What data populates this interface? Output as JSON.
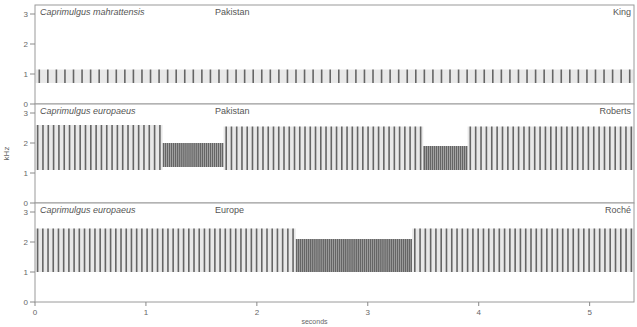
{
  "chart_data": [
    {
      "type": "spectrogram",
      "title": "Caprimulgus mahrattensis",
      "subtitle": "Pakistan",
      "annotations": [
        "King"
      ],
      "xlim": [
        0,
        5.4
      ],
      "ylim": [
        0,
        3.3
      ],
      "yticks": [
        0,
        1,
        2,
        3
      ],
      "segments": [
        {
          "start": 0,
          "end": 5.4,
          "low": 0.7,
          "high": 1.15,
          "pulses": 70
        }
      ]
    },
    {
      "type": "spectrogram",
      "title": "Caprimulgus europaeus",
      "subtitle": "Pakistan",
      "annotations": [
        "Roberts"
      ],
      "ylabel": "kHz",
      "xlim": [
        0,
        5.4
      ],
      "ylim": [
        0,
        3.3
      ],
      "yticks": [
        0,
        1,
        2,
        3
      ],
      "segments": [
        {
          "start": 0,
          "end": 1.15,
          "low": 1.1,
          "high": 2.6,
          "pulses": 24
        },
        {
          "start": 1.15,
          "end": 1.7,
          "low": 1.2,
          "high": 2.0,
          "pulses": 30
        },
        {
          "start": 1.7,
          "end": 3.5,
          "low": 1.1,
          "high": 2.55,
          "pulses": 38
        },
        {
          "start": 3.5,
          "end": 3.9,
          "low": 1.1,
          "high": 1.9,
          "pulses": 22
        },
        {
          "start": 3.9,
          "end": 5.4,
          "low": 1.1,
          "high": 2.55,
          "pulses": 31
        }
      ]
    },
    {
      "type": "spectrogram",
      "title": "Caprimulgus europaeus",
      "subtitle": "Europe",
      "annotations": [
        "Roché"
      ],
      "xlabel": "seconds",
      "xlim": [
        0,
        5.4
      ],
      "xticks": [
        0,
        1,
        2,
        3,
        4,
        5
      ],
      "ylim": [
        0,
        3.3
      ],
      "yticks": [
        0,
        1,
        2,
        3
      ],
      "segments": [
        {
          "start": 0,
          "end": 2.35,
          "low": 1.0,
          "high": 2.45,
          "pulses": 50
        },
        {
          "start": 2.35,
          "end": 3.4,
          "low": 1.0,
          "high": 2.1,
          "pulses": 60
        },
        {
          "start": 3.4,
          "end": 5.4,
          "low": 1.0,
          "high": 2.45,
          "pulses": 42
        }
      ]
    }
  ]
}
